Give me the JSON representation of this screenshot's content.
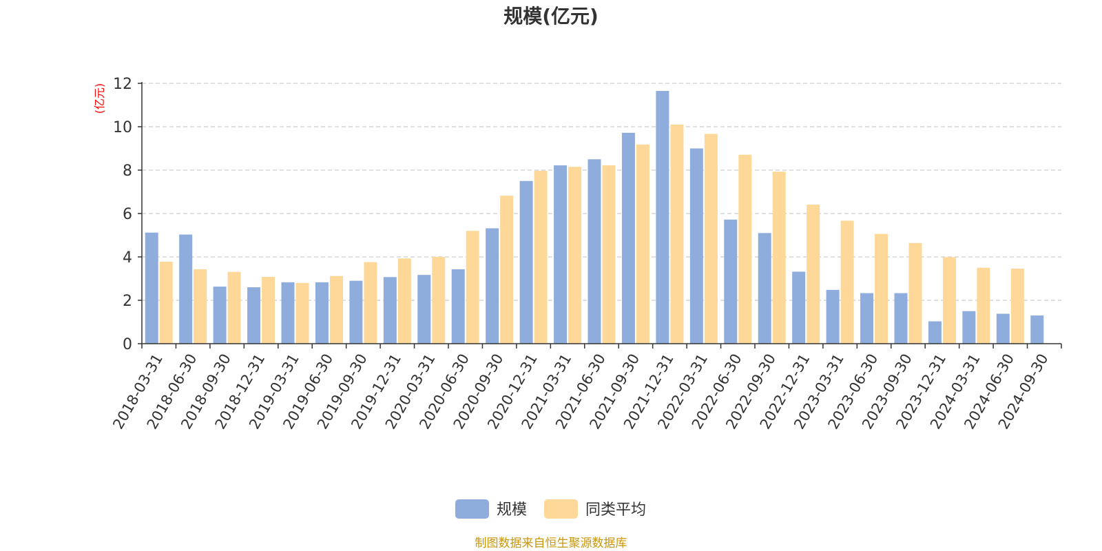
{
  "chart_data": {
    "type": "bar",
    "title": "规模(亿元)",
    "ylabel": "(亿元)",
    "xlabel": "",
    "ylim": [
      0,
      12
    ],
    "yticks": [
      0,
      2,
      4,
      6,
      8,
      10,
      12
    ],
    "grid": true,
    "legend_position": "bottom-center",
    "categories": [
      "2018-03-31",
      "2018-06-30",
      "2018-09-30",
      "2018-12-31",
      "2019-03-31",
      "2019-06-30",
      "2019-09-30",
      "2019-12-31",
      "2020-03-31",
      "2020-06-30",
      "2020-09-30",
      "2020-12-31",
      "2021-03-31",
      "2021-06-30",
      "2021-09-30",
      "2021-12-31",
      "2022-03-31",
      "2022-06-30",
      "2022-09-30",
      "2022-12-31",
      "2023-03-31",
      "2023-06-30",
      "2023-09-30",
      "2023-12-31",
      "2024-03-31",
      "2024-06-30",
      "2024-09-30"
    ],
    "series": [
      {
        "name": "规模",
        "color": "#8EADDC",
        "values": [
          5.12,
          5.03,
          2.63,
          2.6,
          2.83,
          2.83,
          2.9,
          3.07,
          3.17,
          3.43,
          5.32,
          7.5,
          8.22,
          8.5,
          9.72,
          11.65,
          9.0,
          5.72,
          5.1,
          3.32,
          2.48,
          2.33,
          2.33,
          1.03,
          1.5,
          1.38,
          1.3
        ]
      },
      {
        "name": "同类平均",
        "color": "#FDD899",
        "values": [
          3.78,
          3.43,
          3.31,
          3.08,
          2.8,
          3.12,
          3.76,
          3.93,
          4.0,
          5.2,
          6.82,
          7.97,
          8.15,
          8.22,
          9.18,
          10.1,
          9.67,
          8.71,
          7.93,
          6.41,
          5.67,
          5.06,
          4.64,
          3.99,
          3.5,
          3.46,
          null
        ]
      }
    ]
  },
  "footer": {
    "source_text": "制图数据来自恒生聚源数据库"
  },
  "colors": {
    "title": "#333333",
    "axis": "#333333",
    "grid": "#cccccc",
    "ylabel": "#ff0000",
    "footer": "#c8960a"
  }
}
